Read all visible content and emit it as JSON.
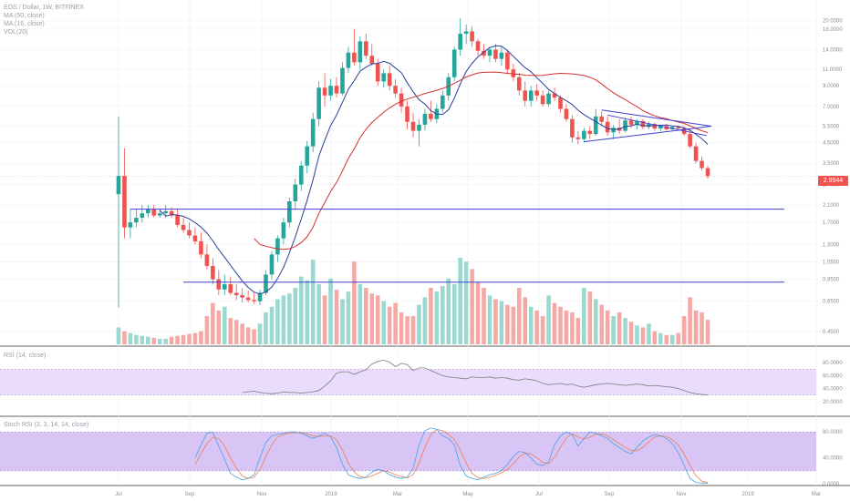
{
  "legend": {
    "symbol": "EOS / Dollar, 1W, BITFINEX",
    "ma1": "MA (50, close)",
    "ma2": "MA (16, close)",
    "vol": "VOL(20)",
    "rsi": "RSI (14, close)",
    "stoch": "Stoch RSI (3, 3, 14, 14, close)"
  },
  "colors": {
    "up": "#26a69a",
    "down": "#ef5350",
    "ma_fast": "#2a3f9a",
    "ma_slow": "#d32f2f",
    "trendline": "#3f3fd0",
    "rsi_band": "#e9ddfb",
    "stoch_band": "#d9c4f6",
    "rsi_line": "#7e7e7e",
    "stoch_k": "#4aa3df",
    "stoch_d": "#ef7f4f"
  },
  "chart_data": {
    "type": "candlestick",
    "title": "",
    "y_scale": "log",
    "price_ticks": [
      "20.0000",
      "18.0000",
      "14.0000",
      "11.0000",
      "9.0000",
      "7.0000",
      "5.5000",
      "4.5000",
      "3.5000",
      "2.7000",
      "2.1000",
      "1.7000",
      "1.3000",
      "1.0500",
      "0.8500",
      "0.6500",
      "0.4500"
    ],
    "last_price": "2.9944",
    "x_ticks": [
      "Jul",
      "Sep",
      "Nov",
      "2019",
      "Mar",
      "May",
      "Jul",
      "Sep",
      "Nov",
      "2019",
      "Mar"
    ],
    "rsi_ticks": [
      "80.0000",
      "60.0000",
      "40.0000",
      "20.0000"
    ],
    "stoch_ticks": [
      "80.0000",
      "40.0000",
      "0.0000"
    ],
    "candles": [
      {
        "o": 2.4,
        "h": 6.2,
        "l": 0.6,
        "c": 3.0
      },
      {
        "o": 3.0,
        "h": 4.2,
        "l": 1.4,
        "c": 1.6
      },
      {
        "o": 1.6,
        "h": 2.0,
        "l": 1.4,
        "c": 1.7
      },
      {
        "o": 1.7,
        "h": 2.0,
        "l": 1.6,
        "c": 1.8
      },
      {
        "o": 1.8,
        "h": 2.1,
        "l": 1.7,
        "c": 1.9
      },
      {
        "o": 1.9,
        "h": 2.1,
        "l": 1.8,
        "c": 2.0
      },
      {
        "o": 2.0,
        "h": 2.1,
        "l": 1.8,
        "c": 1.85
      },
      {
        "o": 1.85,
        "h": 2.0,
        "l": 1.8,
        "c": 1.9
      },
      {
        "o": 1.9,
        "h": 2.1,
        "l": 1.8,
        "c": 1.95
      },
      {
        "o": 1.95,
        "h": 2.05,
        "l": 1.8,
        "c": 1.85
      },
      {
        "o": 1.85,
        "h": 2.0,
        "l": 1.6,
        "c": 1.65
      },
      {
        "o": 1.65,
        "h": 1.8,
        "l": 1.5,
        "c": 1.55
      },
      {
        "o": 1.55,
        "h": 1.7,
        "l": 1.4,
        "c": 1.45
      },
      {
        "o": 1.45,
        "h": 1.6,
        "l": 1.3,
        "c": 1.35
      },
      {
        "o": 1.35,
        "h": 1.5,
        "l": 1.1,
        "c": 1.15
      },
      {
        "o": 1.15,
        "h": 1.3,
        "l": 0.95,
        "c": 1.0
      },
      {
        "o": 1.0,
        "h": 1.1,
        "l": 0.8,
        "c": 0.85
      },
      {
        "o": 0.85,
        "h": 0.95,
        "l": 0.7,
        "c": 0.75
      },
      {
        "o": 0.75,
        "h": 0.9,
        "l": 0.7,
        "c": 0.8
      },
      {
        "o": 0.8,
        "h": 0.88,
        "l": 0.7,
        "c": 0.72
      },
      {
        "o": 0.72,
        "h": 0.8,
        "l": 0.66,
        "c": 0.7
      },
      {
        "o": 0.7,
        "h": 0.76,
        "l": 0.64,
        "c": 0.68
      },
      {
        "o": 0.68,
        "h": 0.74,
        "l": 0.64,
        "c": 0.66
      },
      {
        "o": 0.66,
        "h": 0.72,
        "l": 0.63,
        "c": 0.65
      },
      {
        "o": 0.65,
        "h": 0.75,
        "l": 0.62,
        "c": 0.72
      },
      {
        "o": 0.72,
        "h": 0.95,
        "l": 0.7,
        "c": 0.9
      },
      {
        "o": 0.9,
        "h": 1.2,
        "l": 0.85,
        "c": 1.15
      },
      {
        "o": 1.15,
        "h": 1.45,
        "l": 1.05,
        "c": 1.4
      },
      {
        "o": 1.4,
        "h": 1.8,
        "l": 1.3,
        "c": 1.7
      },
      {
        "o": 1.7,
        "h": 2.3,
        "l": 1.6,
        "c": 2.2
      },
      {
        "o": 2.2,
        "h": 2.9,
        "l": 2.0,
        "c": 2.7
      },
      {
        "o": 2.7,
        "h": 3.6,
        "l": 2.5,
        "c": 3.4
      },
      {
        "o": 3.4,
        "h": 4.6,
        "l": 3.1,
        "c": 4.3
      },
      {
        "o": 4.3,
        "h": 6.5,
        "l": 4.0,
        "c": 6.0
      },
      {
        "o": 6.0,
        "h": 9.5,
        "l": 5.5,
        "c": 8.8
      },
      {
        "o": 8.8,
        "h": 10.5,
        "l": 7.0,
        "c": 8.0
      },
      {
        "o": 8.0,
        "h": 9.8,
        "l": 7.5,
        "c": 9.0
      },
      {
        "o": 9.0,
        "h": 10.0,
        "l": 7.8,
        "c": 8.2
      },
      {
        "o": 8.2,
        "h": 12.0,
        "l": 8.0,
        "c": 11.2
      },
      {
        "o": 11.2,
        "h": 14.5,
        "l": 10.5,
        "c": 13.5
      },
      {
        "o": 13.5,
        "h": 18.0,
        "l": 11.5,
        "c": 12.0
      },
      {
        "o": 12.0,
        "h": 16.5,
        "l": 11.0,
        "c": 15.5
      },
      {
        "o": 15.5,
        "h": 17.0,
        "l": 12.5,
        "c": 13.0
      },
      {
        "o": 13.0,
        "h": 15.0,
        "l": 11.5,
        "c": 11.8
      },
      {
        "o": 11.8,
        "h": 12.5,
        "l": 9.0,
        "c": 9.5
      },
      {
        "o": 9.5,
        "h": 11.0,
        "l": 8.8,
        "c": 10.5
      },
      {
        "o": 10.5,
        "h": 11.5,
        "l": 8.5,
        "c": 9.0
      },
      {
        "o": 9.0,
        "h": 9.8,
        "l": 7.8,
        "c": 8.2
      },
      {
        "o": 8.2,
        "h": 8.8,
        "l": 6.5,
        "c": 7.0
      },
      {
        "o": 7.0,
        "h": 7.5,
        "l": 5.3,
        "c": 5.8
      },
      {
        "o": 5.8,
        "h": 6.5,
        "l": 4.8,
        "c": 5.2
      },
      {
        "o": 5.2,
        "h": 6.0,
        "l": 4.3,
        "c": 5.6
      },
      {
        "o": 5.6,
        "h": 6.8,
        "l": 5.2,
        "c": 6.4
      },
      {
        "o": 6.4,
        "h": 7.5,
        "l": 5.8,
        "c": 6.0
      },
      {
        "o": 6.0,
        "h": 7.2,
        "l": 5.7,
        "c": 6.8
      },
      {
        "o": 6.8,
        "h": 8.5,
        "l": 6.5,
        "c": 8.0
      },
      {
        "o": 8.0,
        "h": 10.5,
        "l": 7.5,
        "c": 10.0
      },
      {
        "o": 10.0,
        "h": 14.5,
        "l": 9.5,
        "c": 14.0
      },
      {
        "o": 14.0,
        "h": 20.5,
        "l": 13.0,
        "c": 17.0
      },
      {
        "o": 17.0,
        "h": 19.0,
        "l": 15.0,
        "c": 17.5
      },
      {
        "o": 17.5,
        "h": 18.5,
        "l": 14.5,
        "c": 15.5
      },
      {
        "o": 15.5,
        "h": 16.0,
        "l": 13.0,
        "c": 13.8
      },
      {
        "o": 13.8,
        "h": 15.0,
        "l": 12.5,
        "c": 13.0
      },
      {
        "o": 13.0,
        "h": 14.5,
        "l": 12.0,
        "c": 14.0
      },
      {
        "o": 14.0,
        "h": 15.0,
        "l": 12.0,
        "c": 12.5
      },
      {
        "o": 12.5,
        "h": 14.5,
        "l": 11.5,
        "c": 13.5
      },
      {
        "o": 13.5,
        "h": 14.0,
        "l": 10.5,
        "c": 11.0
      },
      {
        "o": 11.0,
        "h": 11.8,
        "l": 9.5,
        "c": 10.0
      },
      {
        "o": 10.0,
        "h": 10.5,
        "l": 8.0,
        "c": 8.5
      },
      {
        "o": 8.5,
        "h": 9.5,
        "l": 7.0,
        "c": 7.5
      },
      {
        "o": 7.5,
        "h": 9.0,
        "l": 7.0,
        "c": 8.5
      },
      {
        "o": 8.5,
        "h": 9.2,
        "l": 7.5,
        "c": 8.0
      },
      {
        "o": 8.0,
        "h": 8.5,
        "l": 7.0,
        "c": 7.2
      },
      {
        "o": 7.2,
        "h": 8.5,
        "l": 7.0,
        "c": 8.2
      },
      {
        "o": 8.2,
        "h": 8.8,
        "l": 7.5,
        "c": 7.8
      },
      {
        "o": 7.8,
        "h": 8.0,
        "l": 6.5,
        "c": 6.8
      },
      {
        "o": 6.8,
        "h": 7.2,
        "l": 5.8,
        "c": 6.0
      },
      {
        "o": 6.0,
        "h": 6.3,
        "l": 4.5,
        "c": 4.8
      },
      {
        "o": 4.8,
        "h": 5.2,
        "l": 4.4,
        "c": 4.7
      },
      {
        "o": 4.7,
        "h": 5.4,
        "l": 4.5,
        "c": 5.2
      },
      {
        "o": 5.2,
        "h": 5.5,
        "l": 4.7,
        "c": 5.0
      },
      {
        "o": 5.0,
        "h": 6.8,
        "l": 4.9,
        "c": 6.2
      },
      {
        "o": 6.2,
        "h": 6.6,
        "l": 5.5,
        "c": 5.8
      },
      {
        "o": 5.8,
        "h": 6.2,
        "l": 4.9,
        "c": 5.1
      },
      {
        "o": 5.1,
        "h": 5.6,
        "l": 4.7,
        "c": 5.4
      },
      {
        "o": 5.4,
        "h": 6.0,
        "l": 5.0,
        "c": 5.2
      },
      {
        "o": 5.2,
        "h": 6.1,
        "l": 5.1,
        "c": 5.9
      },
      {
        "o": 5.9,
        "h": 6.2,
        "l": 5.4,
        "c": 5.6
      },
      {
        "o": 5.6,
        "h": 6.0,
        "l": 5.3,
        "c": 5.85
      },
      {
        "o": 5.85,
        "h": 6.0,
        "l": 5.3,
        "c": 5.45
      },
      {
        "o": 5.45,
        "h": 5.8,
        "l": 5.3,
        "c": 5.65
      },
      {
        "o": 5.65,
        "h": 5.75,
        "l": 5.2,
        "c": 5.35
      },
      {
        "o": 5.35,
        "h": 5.6,
        "l": 5.2,
        "c": 5.5
      },
      {
        "o": 5.5,
        "h": 5.65,
        "l": 5.2,
        "c": 5.3
      },
      {
        "o": 5.3,
        "h": 5.5,
        "l": 5.2,
        "c": 5.45
      },
      {
        "o": 5.45,
        "h": 5.55,
        "l": 5.25,
        "c": 5.35
      },
      {
        "o": 5.35,
        "h": 5.5,
        "l": 4.9,
        "c": 5.0
      },
      {
        "o": 5.0,
        "h": 5.2,
        "l": 4.2,
        "c": 4.3
      },
      {
        "o": 4.3,
        "h": 4.5,
        "l": 3.5,
        "c": 3.6
      },
      {
        "o": 3.6,
        "h": 3.8,
        "l": 3.2,
        "c": 3.3
      },
      {
        "o": 3.3,
        "h": 3.4,
        "l": 2.9,
        "c": 2.99
      }
    ],
    "volume": [
      18,
      14,
      12,
      10,
      9,
      8,
      7,
      6,
      6,
      8,
      9,
      10,
      11,
      12,
      14,
      30,
      44,
      36,
      40,
      28,
      26,
      22,
      18,
      16,
      22,
      34,
      40,
      48,
      52,
      54,
      60,
      72,
      68,
      90,
      64,
      52,
      70,
      58,
      48,
      56,
      88,
      64,
      60,
      54,
      52,
      46,
      40,
      44,
      34,
      30,
      30,
      42,
      50,
      60,
      56,
      62,
      70,
      64,
      92,
      88,
      80,
      66,
      60,
      52,
      48,
      46,
      42,
      40,
      60,
      50,
      40,
      36,
      30,
      52,
      44,
      40,
      36,
      34,
      28,
      60,
      56,
      48,
      42,
      36,
      30,
      34,
      28,
      24,
      20,
      18,
      22,
      14,
      12,
      10,
      10,
      12,
      30,
      50,
      36,
      34,
      26
    ],
    "rsi": [
      34,
      35,
      36,
      34,
      33,
      32,
      33,
      35,
      34,
      34,
      33,
      34,
      35,
      37,
      44,
      52,
      64,
      66,
      66,
      62,
      66,
      69,
      78,
      82,
      84,
      81,
      74,
      79,
      77,
      68,
      72,
      72,
      68,
      64,
      60,
      58,
      57,
      56,
      55,
      58,
      57,
      57,
      58,
      56,
      57,
      56,
      54,
      53,
      55,
      54,
      52,
      48,
      46,
      47,
      48,
      46,
      47,
      44,
      42,
      44,
      46,
      47,
      48,
      47,
      46,
      45,
      46,
      47,
      46,
      44,
      45,
      44,
      43,
      42,
      40,
      37,
      34,
      32,
      31,
      30
    ],
    "stoch_k": [
      40,
      60,
      78,
      80,
      58,
      38,
      16,
      10,
      6,
      8,
      14,
      40,
      64,
      74,
      76,
      78,
      80,
      80,
      78,
      74,
      70,
      74,
      78,
      72,
      56,
      30,
      14,
      10,
      8,
      10,
      18,
      22,
      20,
      14,
      10,
      8,
      10,
      24,
      60,
      82,
      86,
      84,
      74,
      70,
      60,
      28,
      12,
      8,
      6,
      10,
      14,
      16,
      20,
      30,
      42,
      50,
      48,
      40,
      30,
      28,
      34,
      60,
      74,
      80,
      76,
      58,
      70,
      80,
      78,
      74,
      70,
      62,
      56,
      50,
      46,
      56,
      66,
      72,
      76,
      74,
      70,
      62,
      48,
      28,
      8,
      2,
      1,
      1
    ],
    "stoch_d": [
      30,
      46,
      62,
      72,
      70,
      58,
      40,
      24,
      12,
      8,
      10,
      22,
      42,
      60,
      72,
      76,
      78,
      79,
      79,
      77,
      74,
      73,
      74,
      74,
      68,
      52,
      32,
      18,
      11,
      9,
      12,
      16,
      20,
      18,
      14,
      11,
      9,
      14,
      32,
      56,
      76,
      84,
      82,
      76,
      68,
      52,
      32,
      16,
      9,
      8,
      10,
      13,
      17,
      22,
      31,
      41,
      47,
      46,
      40,
      33,
      31,
      41,
      56,
      71,
      77,
      72,
      69,
      72,
      76,
      77,
      74,
      68,
      62,
      56,
      51,
      51,
      56,
      65,
      72,
      74,
      73,
      68,
      60,
      46,
      28,
      12,
      4,
      2
    ]
  }
}
